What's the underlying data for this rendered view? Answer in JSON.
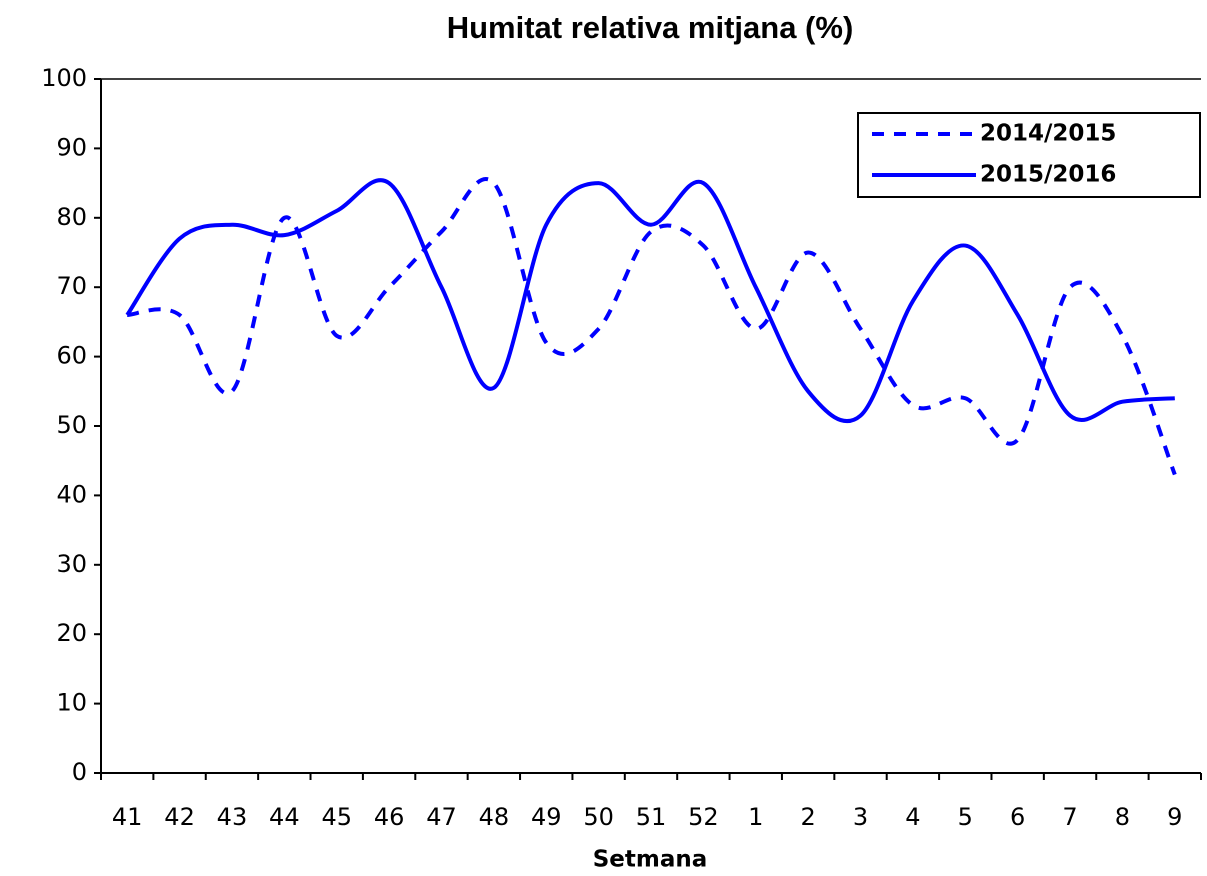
{
  "chart_data": {
    "type": "line",
    "title": "Humitat relativa mitjana (%)",
    "x_label": "Setmana",
    "categories": [
      "41",
      "42",
      "43",
      "44",
      "45",
      "46",
      "47",
      "48",
      "49",
      "50",
      "51",
      "52",
      "1",
      "2",
      "3",
      "4",
      "5",
      "6",
      "7",
      "8",
      "9"
    ],
    "series": [
      {
        "name": "2014/2015",
        "color": "#0000ff",
        "dashed": true,
        "values": [
          66,
          66,
          55,
          80,
          63,
          70,
          78,
          85,
          62,
          64,
          78,
          76,
          64,
          75,
          64,
          53,
          54,
          48,
          70,
          63,
          43
        ]
      },
      {
        "name": "2015/2016",
        "color": "#0000ff",
        "dashed": false,
        "values": [
          66,
          77,
          79,
          77.5,
          81,
          85,
          70,
          55.5,
          79,
          85,
          79,
          85,
          70,
          55,
          51.5,
          68,
          76,
          66,
          51.5,
          53.5,
          54
        ]
      }
    ],
    "ylim": [
      0,
      100
    ],
    "yticks": [
      0,
      10,
      20,
      30,
      40,
      50,
      60,
      70,
      80,
      90,
      100
    ],
    "legend": "top-right"
  }
}
